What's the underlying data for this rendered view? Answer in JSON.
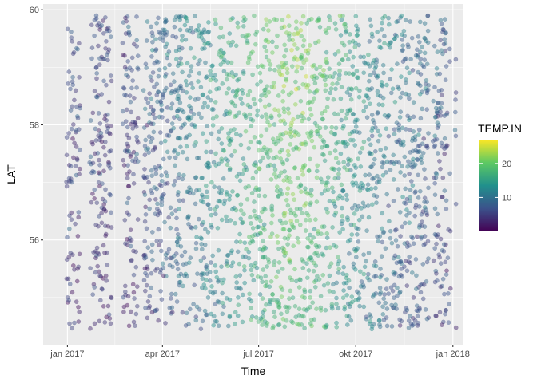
{
  "chart_data": {
    "type": "scatter",
    "xlabel": "Time",
    "ylabel": "LAT",
    "x_ticks": [
      "jan 2017",
      "apr 2017",
      "jul 2017",
      "okt 2017",
      "jan 2018"
    ],
    "x_tick_values": [
      "2017-01-01",
      "2017-04-01",
      "2017-07-01",
      "2017-10-01",
      "2018-01-01"
    ],
    "xlim": [
      "2016-12-09",
      "2018-01-11"
    ],
    "y_ticks": [
      56,
      58,
      60
    ],
    "ylim": [
      54.18,
      60.1
    ],
    "grid": true,
    "panel_background": "#ebebeb",
    "color_scale": {
      "name": "TEMP.IN",
      "palette": "viridis",
      "range": [
        0,
        27
      ],
      "ticks": [
        10,
        20
      ],
      "colors": [
        "#440154",
        "#3b528b",
        "#21908c",
        "#5dc963",
        "#fde725"
      ]
    },
    "point_alpha": 0.45,
    "data_gaps": [
      {
        "from": "2017-01-13",
        "to": "2017-01-22"
      },
      {
        "from": "2017-02-12",
        "to": "2017-02-22"
      },
      {
        "from": "2017-03-09",
        "to": "2017-03-14"
      },
      {
        "from": "2017-12-09",
        "to": "2017-12-13"
      },
      {
        "from": "2017-12-30",
        "to": "2018-01-03"
      }
    ],
    "temperature_by_date": [
      {
        "date": "2017-01-01",
        "temp": 5
      },
      {
        "date": "2017-02-01",
        "temp": 4.5
      },
      {
        "date": "2017-03-01",
        "temp": 5
      },
      {
        "date": "2017-04-01",
        "temp": 8
      },
      {
        "date": "2017-05-01",
        "temp": 11
      },
      {
        "date": "2017-06-01",
        "temp": 14
      },
      {
        "date": "2017-07-01",
        "temp": 17
      },
      {
        "date": "2017-08-01",
        "temp": 20
      },
      {
        "date": "2017-09-01",
        "temp": 17
      },
      {
        "date": "2017-10-01",
        "temp": 13
      },
      {
        "date": "2017-11-01",
        "temp": 10
      },
      {
        "date": "2017-12-01",
        "temp": 8
      },
      {
        "date": "2018-01-01",
        "temp": 6
      }
    ]
  }
}
